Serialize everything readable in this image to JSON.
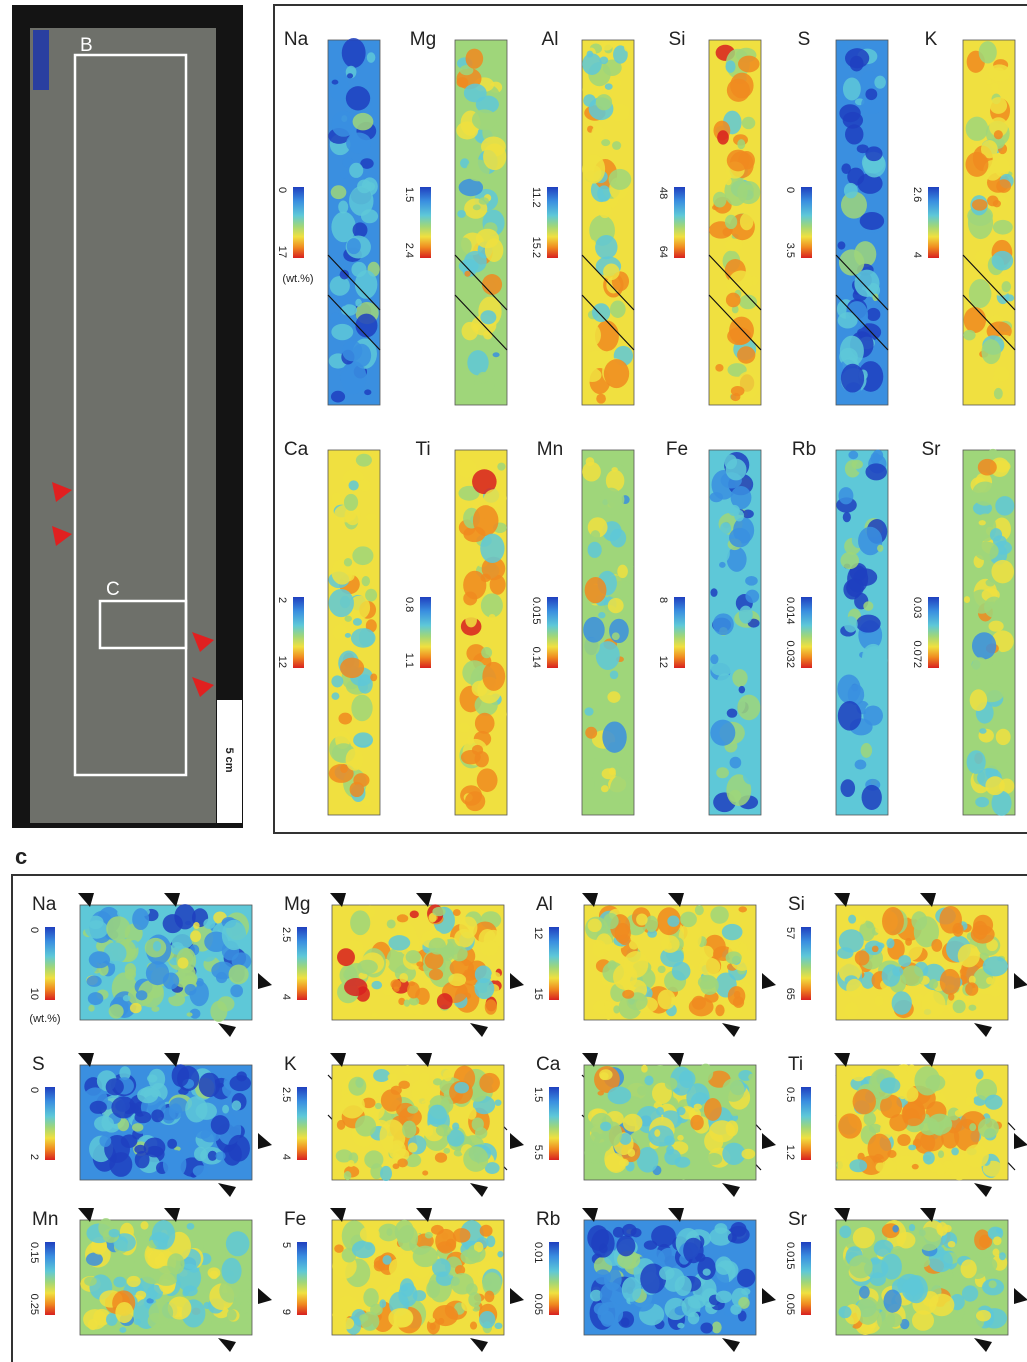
{
  "core": {
    "label_b": "B",
    "label_c": "C",
    "scale": "5 cm"
  },
  "panel_b": {
    "unit": "(wt.%)",
    "maps": [
      {
        "element": "Na",
        "top": "0",
        "bottom": "17"
      },
      {
        "element": "Mg",
        "top": "1.5",
        "bottom": "2.4"
      },
      {
        "element": "Al",
        "top": "11.2",
        "bottom": "15.2"
      },
      {
        "element": "Si",
        "top": "48",
        "bottom": "64"
      },
      {
        "element": "S",
        "top": "0",
        "bottom": "3.5"
      },
      {
        "element": "K",
        "top": "2.6",
        "bottom": "4"
      },
      {
        "element": "Ca",
        "top": "2",
        "bottom": "12"
      },
      {
        "element": "Ti",
        "top": "0.8",
        "bottom": "1.1"
      },
      {
        "element": "Mn",
        "top": "0.015",
        "bottom": "0.14"
      },
      {
        "element": "Fe",
        "top": "8",
        "bottom": "12"
      },
      {
        "element": "Rb",
        "top": "0.014",
        "bottom": "0.032"
      },
      {
        "element": "Sr",
        "top": "0.03",
        "bottom": "0.072"
      }
    ]
  },
  "panel_c": {
    "label": "c",
    "unit": "(wt.%)",
    "maps": [
      {
        "element": "Na",
        "top": "0",
        "bottom": "10"
      },
      {
        "element": "Mg",
        "top": "2.5",
        "bottom": "4"
      },
      {
        "element": "Al",
        "top": "12",
        "bottom": "15"
      },
      {
        "element": "Si",
        "top": "57",
        "bottom": "65"
      },
      {
        "element": "S",
        "top": "0",
        "bottom": "2"
      },
      {
        "element": "K",
        "top": "2.5",
        "bottom": "4"
      },
      {
        "element": "Ca",
        "top": "1.5",
        "bottom": "5.5"
      },
      {
        "element": "Ti",
        "top": "0.5",
        "bottom": "1.2"
      },
      {
        "element": "Mn",
        "top": "0.15",
        "bottom": "0.25"
      },
      {
        "element": "Fe",
        "top": "5",
        "bottom": "9"
      },
      {
        "element": "Rb",
        "top": "0.01",
        "bottom": "0.05"
      },
      {
        "element": "Sr",
        "top": "0.015",
        "bottom": "0.05"
      }
    ]
  }
}
